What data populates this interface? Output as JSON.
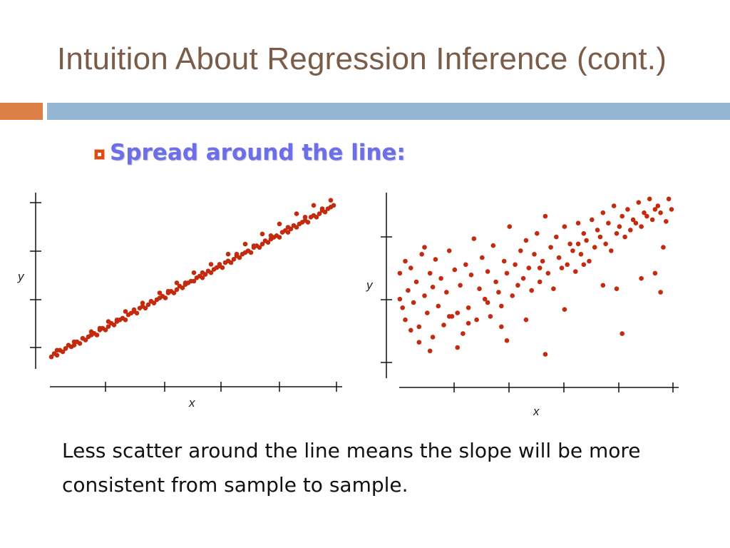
{
  "slide": {
    "title": "Intuition About Regression Inference (cont.)",
    "bullet": "Spread around the line:",
    "caption": "Less scatter around the line means the slope will be more consistent from sample to sample.",
    "colors": {
      "title": "#7a5c48",
      "accent_orange": "#dd8047",
      "accent_blue": "#94b6d2",
      "bullet_text": "#6d6fe8",
      "points": "#c42a0e"
    }
  },
  "chart_data": [
    {
      "type": "scatter",
      "xlabel": "x",
      "ylabel": "y",
      "grid": false,
      "xlim": [
        0,
        100
      ],
      "ylim": [
        0,
        100
      ],
      "x": [
        1,
        2,
        3,
        4,
        5,
        6,
        7,
        8,
        9,
        10,
        11,
        12,
        13,
        14,
        15,
        16,
        17,
        18,
        19,
        20,
        21,
        22,
        23,
        24,
        25,
        26,
        27,
        28,
        29,
        30,
        31,
        32,
        33,
        34,
        35,
        36,
        37,
        38,
        39,
        40,
        41,
        42,
        43,
        44,
        45,
        46,
        47,
        48,
        49,
        50,
        51,
        52,
        53,
        54,
        55,
        56,
        57,
        58,
        59,
        60,
        61,
        62,
        63,
        64,
        65,
        66,
        67,
        68,
        69,
        70,
        71,
        72,
        73,
        74,
        75,
        76,
        77,
        78,
        79,
        80,
        81,
        82,
        83,
        84,
        85,
        86,
        87,
        88,
        89,
        90,
        91,
        92,
        93,
        94,
        95,
        96,
        97,
        98,
        99,
        100,
        3,
        9,
        15,
        21,
        27,
        33,
        39,
        45,
        51,
        57,
        63,
        69,
        75,
        81,
        87,
        93,
        99,
        12,
        24,
        36,
        48,
        60,
        72,
        84,
        96,
        6,
        18,
        30,
        42,
        54,
        66,
        78,
        90
      ],
      "y": [
        5,
        7,
        6,
        9,
        8,
        10,
        12,
        11,
        12,
        14,
        13,
        16,
        15,
        17,
        18,
        19,
        18,
        21,
        22,
        21,
        23,
        25,
        24,
        26,
        27,
        28,
        27,
        30,
        31,
        32,
        31,
        34,
        35,
        34,
        36,
        38,
        37,
        39,
        40,
        41,
        40,
        43,
        44,
        43,
        45,
        47,
        46,
        48,
        49,
        50,
        50,
        52,
        53,
        52,
        54,
        56,
        55,
        57,
        58,
        59,
        58,
        61,
        62,
        61,
        63,
        65,
        64,
        66,
        67,
        68,
        67,
        70,
        71,
        70,
        72,
        74,
        73,
        75,
        76,
        77,
        76,
        79,
        80,
        79,
        81,
        83,
        82,
        84,
        85,
        86,
        85,
        88,
        89,
        88,
        90,
        92,
        91,
        93,
        94,
        95,
        9,
        14,
        20,
        26,
        32,
        37,
        43,
        49,
        55,
        60,
        66,
        72,
        78,
        84,
        90,
        95,
        98,
        16,
        27,
        38,
        49,
        60,
        71,
        82,
        93,
        10,
        22,
        33,
        44,
        55,
        66,
        77,
        88
      ]
    },
    {
      "type": "scatter",
      "xlabel": "x",
      "ylabel": "y",
      "grid": false,
      "xlim": [
        0,
        100
      ],
      "ylim": [
        0,
        100
      ],
      "x": [
        1,
        1,
        2,
        3,
        3,
        4,
        5,
        6,
        7,
        8,
        9,
        10,
        10,
        11,
        12,
        13,
        13,
        14,
        15,
        16,
        17,
        18,
        19,
        20,
        21,
        22,
        23,
        24,
        25,
        26,
        27,
        28,
        29,
        30,
        31,
        32,
        33,
        34,
        35,
        36,
        37,
        38,
        39,
        40,
        41,
        42,
        43,
        44,
        45,
        46,
        47,
        48,
        49,
        50,
        51,
        52,
        53,
        54,
        55,
        56,
        57,
        58,
        59,
        60,
        61,
        62,
        63,
        64,
        65,
        66,
        67,
        68,
        69,
        70,
        71,
        72,
        73,
        74,
        75,
        76,
        77,
        78,
        79,
        80,
        81,
        82,
        83,
        84,
        85,
        86,
        87,
        88,
        89,
        90,
        91,
        92,
        93,
        94,
        95,
        96,
        97,
        98,
        99,
        100,
        5,
        12,
        19,
        26,
        33,
        40,
        47,
        54,
        61,
        68,
        75,
        82,
        89,
        96,
        8,
        22,
        38,
        52,
        66,
        80,
        94
      ],
      "y": [
        40,
        55,
        35,
        62,
        28,
        45,
        58,
        38,
        50,
        24,
        66,
        42,
        70,
        32,
        55,
        18,
        47,
        63,
        36,
        52,
        25,
        44,
        68,
        30,
        57,
        12,
        48,
        20,
        60,
        35,
        54,
        75,
        28,
        46,
        64,
        40,
        56,
        30,
        71,
        50,
        44,
        36,
        62,
        55,
        82,
        42,
        60,
        48,
        68,
        52,
        74,
        58,
        45,
        66,
        78,
        50,
        62,
        88,
        55,
        70,
        46,
        76,
        64,
        58,
        82,
        60,
        72,
        68,
        56,
        84,
        66,
        78,
        74,
        62,
        86,
        70,
        80,
        76,
        90,
        72,
        84,
        68,
        94,
        78,
        82,
        88,
        76,
        92,
        80,
        86,
        84,
        96,
        82,
        90,
        88,
        98,
        86,
        92,
        94,
        90,
        70,
        85,
        98,
        92,
        22,
        10,
        30,
        26,
        38,
        16,
        28,
        8,
        34,
        60,
        48,
        20,
        52,
        44,
        15,
        32,
        24,
        58,
        72,
        46,
        55
      ]
    }
  ]
}
